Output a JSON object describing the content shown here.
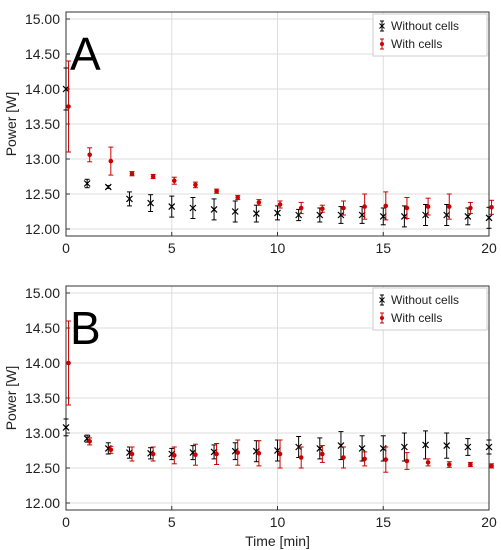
{
  "chart_data": [
    {
      "type": "scatter",
      "panel_label": "A",
      "title": "",
      "xlabel": "",
      "ylabel": "Power [W]",
      "xlim": [
        0,
        20
      ],
      "ylim": [
        11.9,
        15.1
      ],
      "x_ticks": [
        "0",
        "5",
        "10",
        "15",
        "20"
      ],
      "y_ticks": [
        "12.00",
        "12.50",
        "13.00",
        "13.50",
        "14.00",
        "14.50",
        "15.00"
      ],
      "grid": true,
      "legend_position": "top-right",
      "series": [
        {
          "name": "Without cells",
          "marker": "x",
          "color": "#000000",
          "x": [
            0,
            1,
            2,
            3,
            4,
            5,
            6,
            7,
            8,
            9,
            10,
            11,
            12,
            13,
            14,
            15,
            16,
            17,
            18,
            19,
            20
          ],
          "y": [
            14.0,
            12.65,
            12.6,
            12.43,
            12.37,
            12.32,
            12.3,
            12.28,
            12.25,
            12.22,
            12.23,
            12.2,
            12.2,
            12.2,
            12.2,
            12.18,
            12.18,
            12.2,
            12.2,
            12.18,
            12.16
          ],
          "error": [
            0.3,
            0.06,
            0.02,
            0.1,
            0.12,
            0.15,
            0.15,
            0.15,
            0.15,
            0.12,
            0.1,
            0.08,
            0.1,
            0.12,
            0.12,
            0.12,
            0.15,
            0.15,
            0.15,
            0.12,
            0.15
          ]
        },
        {
          "name": "With cells",
          "marker": "dot",
          "color": "#cc0000",
          "x": [
            0,
            1,
            2,
            3,
            4,
            5,
            6,
            7,
            8,
            9,
            10,
            11,
            12,
            13,
            14,
            15,
            16,
            17,
            18,
            19,
            20
          ],
          "y": [
            13.75,
            13.06,
            12.97,
            12.79,
            12.75,
            12.69,
            12.63,
            12.54,
            12.45,
            12.38,
            12.35,
            12.3,
            12.29,
            12.3,
            12.32,
            12.33,
            12.3,
            12.32,
            12.32,
            12.3,
            12.31
          ],
          "error": [
            0.65,
            0.1,
            0.2,
            0.03,
            0.03,
            0.05,
            0.04,
            0.03,
            0.03,
            0.04,
            0.05,
            0.08,
            0.05,
            0.1,
            0.18,
            0.2,
            0.15,
            0.12,
            0.18,
            0.08,
            0.1
          ]
        }
      ]
    },
    {
      "type": "scatter",
      "panel_label": "B",
      "title": "",
      "xlabel": "Time [min]",
      "ylabel": "Power [W]",
      "xlim": [
        0,
        20
      ],
      "ylim": [
        11.9,
        15.1
      ],
      "x_ticks": [
        "0",
        "5",
        "10",
        "15",
        "20"
      ],
      "y_ticks": [
        "12.00",
        "12.50",
        "13.00",
        "13.50",
        "14.00",
        "14.50",
        "15.00"
      ],
      "grid": true,
      "legend_position": "top-right",
      "series": [
        {
          "name": "Without cells",
          "marker": "x",
          "color": "#000000",
          "x": [
            0,
            1,
            2,
            3,
            4,
            5,
            6,
            7,
            8,
            9,
            10,
            11,
            12,
            13,
            14,
            15,
            16,
            17,
            18,
            19,
            20
          ],
          "y": [
            13.08,
            12.92,
            12.78,
            12.72,
            12.71,
            12.7,
            12.72,
            12.73,
            12.74,
            12.74,
            12.75,
            12.8,
            12.78,
            12.82,
            12.78,
            12.78,
            12.8,
            12.83,
            12.82,
            12.8,
            12.8
          ],
          "error": [
            0.12,
            0.05,
            0.08,
            0.08,
            0.08,
            0.08,
            0.1,
            0.1,
            0.12,
            0.15,
            0.15,
            0.15,
            0.15,
            0.2,
            0.18,
            0.18,
            0.2,
            0.2,
            0.18,
            0.12,
            0.1
          ]
        },
        {
          "name": "With cells",
          "marker": "dot",
          "color": "#cc0000",
          "x": [
            0,
            1,
            2,
            3,
            4,
            5,
            6,
            7,
            8,
            9,
            10,
            11,
            12,
            13,
            14,
            15,
            16,
            17,
            18,
            19,
            20
          ],
          "y": [
            14.0,
            12.88,
            12.76,
            12.7,
            12.7,
            12.68,
            12.69,
            12.7,
            12.72,
            12.71,
            12.7,
            12.65,
            12.7,
            12.65,
            12.63,
            12.62,
            12.6,
            12.58,
            12.55,
            12.55,
            12.53
          ],
          "error": [
            0.6,
            0.05,
            0.05,
            0.1,
            0.1,
            0.12,
            0.15,
            0.15,
            0.18,
            0.18,
            0.2,
            0.15,
            0.12,
            0.15,
            0.1,
            0.18,
            0.12,
            0.05,
            0.04,
            0.03,
            0.03
          ]
        }
      ]
    }
  ]
}
